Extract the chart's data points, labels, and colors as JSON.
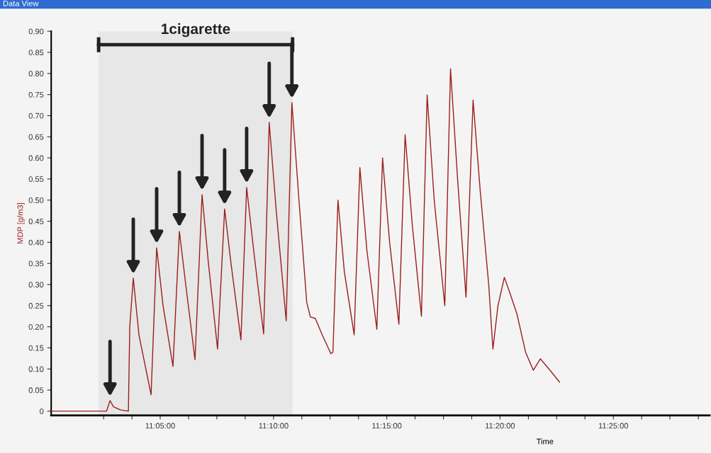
{
  "chart_data": {
    "type": "line",
    "title": "Data View",
    "xlabel": "Time",
    "ylabel": "MDP [g/m3]",
    "x": [
      11.0031,
      11.0438,
      11.0464,
      11.049,
      11.0542,
      11.0599,
      11.0609,
      11.0635,
      11.0677,
      11.0766,
      11.0807,
      11.0854,
      11.0927,
      11.0974,
      11.1021,
      11.1089,
      11.1141,
      11.1188,
      11.1255,
      11.1307,
      11.1354,
      11.1427,
      11.1469,
      11.1521,
      11.1594,
      11.1635,
      11.1688,
      11.176,
      11.1802,
      11.1854,
      11.1911,
      11.1938,
      11.1974,
      11.2026,
      11.2089,
      11.2104,
      11.2141,
      11.2188,
      11.226,
      11.2302,
      11.2354,
      11.2427,
      11.2469,
      11.2521,
      11.2589,
      11.2635,
      11.2688,
      11.2755,
      11.2797,
      11.2849,
      11.2927,
      11.2969,
      11.3021,
      11.3083,
      11.3135,
      11.3188,
      11.325,
      11.3281,
      11.3318,
      11.3365,
      11.3406,
      11.3458,
      11.3521,
      11.3578,
      11.363,
      11.3693,
      11.3771
    ],
    "series": [
      {
        "color": "#9b1c1c",
        "values": [
          0,
          0,
          0.025,
          0.01,
          0.003,
          0,
          0.2,
          0.315,
          0.18,
          0.039,
          0.387,
          0.25,
          0.106,
          0.426,
          0.3,
          0.122,
          0.513,
          0.35,
          0.147,
          0.479,
          0.35,
          0.169,
          0.53,
          0.38,
          0.183,
          0.684,
          0.47,
          0.214,
          0.731,
          0.5,
          0.258,
          0.223,
          0.22,
          0.18,
          0.136,
          0.14,
          0.5,
          0.33,
          0.181,
          0.577,
          0.38,
          0.194,
          0.6,
          0.4,
          0.206,
          0.655,
          0.44,
          0.225,
          0.749,
          0.5,
          0.25,
          0.811,
          0.55,
          0.27,
          0.737,
          0.52,
          0.3,
          0.147,
          0.25,
          0.317,
          0.28,
          0.23,
          0.14,
          0.097,
          0.124,
          0.1,
          0.069
        ]
      }
    ],
    "xlim": [
      11.0031,
      11.4875
    ],
    "xticks": [
      {
        "value": 11.0417,
        "label": null
      },
      {
        "value": 11.0625,
        "label": null
      },
      {
        "value": 11.0833,
        "label": "11:05:00"
      },
      {
        "value": 11.1042,
        "label": null
      },
      {
        "value": 11.125,
        "label": null
      },
      {
        "value": 11.1458,
        "label": null
      },
      {
        "value": 11.1667,
        "label": "11:10:00"
      },
      {
        "value": 11.1875,
        "label": null
      },
      {
        "value": 11.2083,
        "label": null
      },
      {
        "value": 11.2292,
        "label": null
      },
      {
        "value": 11.25,
        "label": "11:15:00"
      },
      {
        "value": 11.2708,
        "label": null
      },
      {
        "value": 11.2917,
        "label": null
      },
      {
        "value": 11.3125,
        "label": null
      },
      {
        "value": 11.3333,
        "label": "11:20:00"
      },
      {
        "value": 11.3542,
        "label": null
      },
      {
        "value": 11.375,
        "label": null
      },
      {
        "value": 11.3958,
        "label": null
      },
      {
        "value": 11.4167,
        "label": "11:25:00"
      },
      {
        "value": 11.4375,
        "label": null
      },
      {
        "value": 11.4583,
        "label": null
      },
      {
        "value": 11.4792,
        "label": null
      }
    ],
    "ylim": [
      -0.01,
      0.9
    ],
    "yticks": [
      0,
      {
        "value": 0.05,
        "label": "0.05"
      },
      {
        "value": 0.1,
        "label": "0.10"
      },
      {
        "value": 0.15,
        "label": "0.15"
      },
      {
        "value": 0.2,
        "label": "0.20"
      },
      {
        "value": 0.25,
        "label": "0.25"
      },
      {
        "value": 0.3,
        "label": "0.30"
      },
      {
        "value": 0.35,
        "label": "0.35"
      },
      {
        "value": 0.4,
        "label": "0.40"
      },
      {
        "value": 0.45,
        "label": "0.45"
      },
      {
        "value": 0.5,
        "label": "0.50"
      },
      {
        "value": 0.55,
        "label": "0.55"
      },
      {
        "value": 0.6,
        "label": "0.60"
      },
      {
        "value": 0.65,
        "label": "0.65"
      },
      {
        "value": 0.7,
        "label": "0.70"
      },
      {
        "value": 0.75,
        "label": "0.75"
      },
      {
        "value": 0.8,
        "label": "0.80"
      },
      {
        "value": 0.85,
        "label": "0.85"
      },
      {
        "value": 0.9,
        "label": "0.90"
      }
    ],
    "bands": [
      {
        "axis": "x",
        "from": 11.038,
        "to": 11.1807,
        "label": "1cigarette",
        "color": "#222222"
      }
    ],
    "grid": false,
    "legend": false,
    "marker": "none",
    "line_style": "solid"
  }
}
